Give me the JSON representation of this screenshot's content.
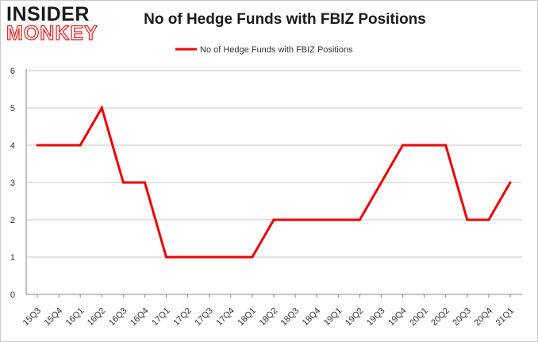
{
  "logo": {
    "line1": "INSIDER",
    "line2": "MONKEY"
  },
  "chart_data": {
    "type": "line",
    "title": "No of Hedge Funds with FBIZ Positions",
    "xlabel": "",
    "ylabel": "",
    "ylim": [
      0,
      6
    ],
    "yticks": [
      0,
      1,
      2,
      3,
      4,
      5,
      6
    ],
    "grid": true,
    "legend_position": "top-center",
    "categories": [
      "15Q3",
      "15Q4",
      "16Q1",
      "16Q2",
      "16Q3",
      "16Q4",
      "17Q1",
      "17Q2",
      "17Q3",
      "17Q4",
      "18Q1",
      "18Q2",
      "18Q3",
      "18Q4",
      "19Q1",
      "19Q2",
      "19Q3",
      "19Q4",
      "20Q1",
      "20Q2",
      "20Q3",
      "20Q4",
      "21Q1"
    ],
    "series": [
      {
        "name": "No of Hedge Funds with FBIZ Positions",
        "color": "#ee0000",
        "values": [
          4,
          4,
          4,
          5,
          3,
          3,
          1,
          1,
          1,
          1,
          1,
          2,
          2,
          2,
          2,
          2,
          3,
          4,
          4,
          4,
          2,
          2,
          3
        ]
      }
    ]
  }
}
